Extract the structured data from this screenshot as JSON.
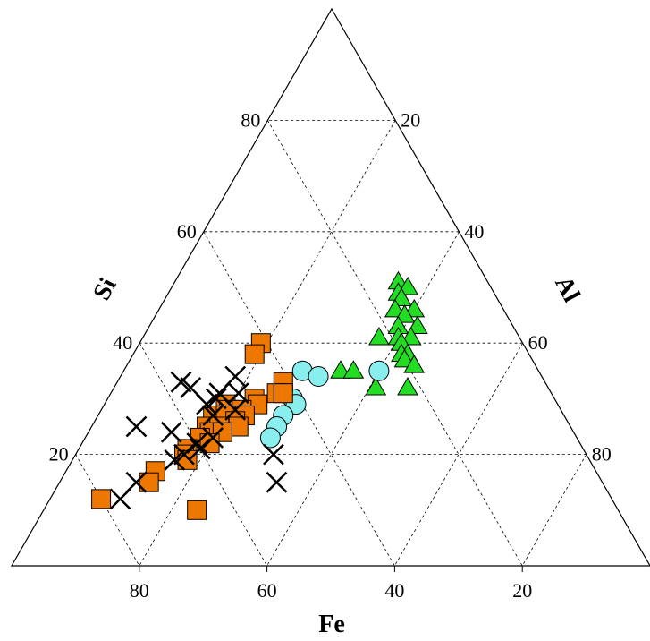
{
  "chart_data": {
    "type": "scatter",
    "subtype": "ternary",
    "title": "",
    "axes": {
      "a": {
        "label": "Si",
        "ticks": [
          20,
          40,
          60,
          80
        ]
      },
      "b": {
        "label": "Al",
        "ticks": [
          20,
          40,
          60,
          80
        ]
      },
      "c": {
        "label": "Fe",
        "ticks": [
          80,
          60,
          40,
          20
        ]
      }
    },
    "grid": "dashed",
    "legend": "none",
    "series": [
      {
        "marker": "triangle",
        "color": "#22dd22",
        "points": [
          {
            "Si": 51,
            "Al": 35,
            "Fe": 14
          },
          {
            "Si": 50,
            "Al": 37,
            "Fe": 13
          },
          {
            "Si": 49,
            "Al": 36,
            "Fe": 15
          },
          {
            "Si": 48,
            "Al": 37,
            "Fe": 15
          },
          {
            "Si": 46,
            "Al": 37,
            "Fe": 17
          },
          {
            "Si": 46,
            "Al": 40,
            "Fe": 14
          },
          {
            "Si": 45,
            "Al": 39,
            "Fe": 16
          },
          {
            "Si": 43,
            "Al": 42,
            "Fe": 15
          },
          {
            "Si": 43,
            "Al": 39,
            "Fe": 18
          },
          {
            "Si": 41,
            "Al": 40,
            "Fe": 19
          },
          {
            "Si": 41,
            "Al": 42,
            "Fe": 17
          },
          {
            "Si": 41,
            "Al": 37,
            "Fe": 22
          },
          {
            "Si": 40,
            "Al": 41,
            "Fe": 19
          },
          {
            "Si": 38,
            "Al": 43,
            "Fe": 19
          },
          {
            "Si": 38,
            "Al": 42,
            "Fe": 20
          },
          {
            "Si": 37,
            "Al": 43,
            "Fe": 20
          },
          {
            "Si": 36,
            "Al": 45,
            "Fe": 19
          },
          {
            "Si": 35,
            "Al": 34,
            "Fe": 31
          },
          {
            "Si": 35,
            "Al": 36,
            "Fe": 29
          },
          {
            "Si": 32,
            "Al": 41,
            "Fe": 27
          },
          {
            "Si": 32,
            "Al": 46,
            "Fe": 22
          }
        ]
      },
      {
        "marker": "circle",
        "color": "#88eeee",
        "points": [
          {
            "Si": 35,
            "Al": 40,
            "Fe": 25
          },
          {
            "Si": 35,
            "Al": 28,
            "Fe": 37
          },
          {
            "Si": 34,
            "Al": 31,
            "Fe": 35
          },
          {
            "Si": 30,
            "Al": 29,
            "Fe": 41
          },
          {
            "Si": 29,
            "Al": 30,
            "Fe": 41
          },
          {
            "Si": 27,
            "Al": 29,
            "Fe": 44
          },
          {
            "Si": 25,
            "Al": 29,
            "Fe": 46
          },
          {
            "Si": 23,
            "Al": 29,
            "Fe": 48
          }
        ]
      },
      {
        "marker": "square",
        "color": "#ee7700",
        "points": [
          {
            "Si": 40,
            "Al": 19,
            "Fe": 41
          },
          {
            "Si": 38,
            "Al": 19,
            "Fe": 43
          },
          {
            "Si": 33,
            "Al": 26,
            "Fe": 41
          },
          {
            "Si": 31,
            "Al": 26,
            "Fe": 43
          },
          {
            "Si": 31,
            "Al": 27,
            "Fe": 42
          },
          {
            "Si": 30,
            "Al": 23,
            "Fe": 47
          },
          {
            "Si": 29,
            "Al": 24,
            "Fe": 47
          },
          {
            "Si": 29,
            "Al": 19,
            "Fe": 52
          },
          {
            "Si": 28,
            "Al": 20,
            "Fe": 52
          },
          {
            "Si": 28,
            "Al": 22,
            "Fe": 50
          },
          {
            "Si": 27,
            "Al": 23,
            "Fe": 50
          },
          {
            "Si": 27,
            "Al": 18,
            "Fe": 55
          },
          {
            "Si": 27,
            "Al": 20,
            "Fe": 53
          },
          {
            "Si": 26,
            "Al": 22,
            "Fe": 52
          },
          {
            "Si": 25,
            "Al": 18,
            "Fe": 57
          },
          {
            "Si": 25,
            "Al": 20,
            "Fe": 55
          },
          {
            "Si": 25,
            "Al": 23,
            "Fe": 52
          },
          {
            "Si": 24,
            "Al": 19,
            "Fe": 57
          },
          {
            "Si": 24,
            "Al": 21,
            "Fe": 55
          },
          {
            "Si": 23,
            "Al": 18,
            "Fe": 59
          },
          {
            "Si": 22,
            "Al": 20,
            "Fe": 58
          },
          {
            "Si": 21,
            "Al": 17,
            "Fe": 62
          },
          {
            "Si": 20,
            "Al": 17,
            "Fe": 63
          },
          {
            "Si": 19,
            "Al": 18,
            "Fe": 63
          },
          {
            "Si": 17,
            "Al": 14,
            "Fe": 69
          },
          {
            "Si": 15,
            "Al": 14,
            "Fe": 71
          },
          {
            "Si": 12,
            "Al": 8,
            "Fe": 80
          },
          {
            "Si": 10,
            "Al": 24,
            "Fe": 66
          }
        ]
      },
      {
        "marker": "x",
        "color": "#000000",
        "points": [
          {
            "Si": 34,
            "Al": 18,
            "Fe": 48
          },
          {
            "Si": 33,
            "Al": 10,
            "Fe": 57
          },
          {
            "Si": 32,
            "Al": 12,
            "Fe": 56
          },
          {
            "Si": 31,
            "Al": 17,
            "Fe": 52
          },
          {
            "Si": 31,
            "Al": 20,
            "Fe": 49
          },
          {
            "Si": 30,
            "Al": 17,
            "Fe": 53
          },
          {
            "Si": 29,
            "Al": 16,
            "Fe": 55
          },
          {
            "Si": 28,
            "Al": 21,
            "Fe": 51
          },
          {
            "Si": 27,
            "Al": 18,
            "Fe": 55
          },
          {
            "Si": 25,
            "Al": 7,
            "Fe": 68
          },
          {
            "Si": 24,
            "Al": 13,
            "Fe": 63
          },
          {
            "Si": 23,
            "Al": 20,
            "Fe": 57
          },
          {
            "Si": 22,
            "Al": 18,
            "Fe": 60
          },
          {
            "Si": 21,
            "Al": 19,
            "Fe": 60
          },
          {
            "Si": 20,
            "Al": 31,
            "Fe": 49
          },
          {
            "Si": 20,
            "Al": 17,
            "Fe": 63
          },
          {
            "Si": 19,
            "Al": 16,
            "Fe": 65
          },
          {
            "Si": 15,
            "Al": 34,
            "Fe": 51
          },
          {
            "Si": 15,
            "Al": 12,
            "Fe": 73
          },
          {
            "Si": 12,
            "Al": 11,
            "Fe": 77
          }
        ]
      }
    ]
  }
}
